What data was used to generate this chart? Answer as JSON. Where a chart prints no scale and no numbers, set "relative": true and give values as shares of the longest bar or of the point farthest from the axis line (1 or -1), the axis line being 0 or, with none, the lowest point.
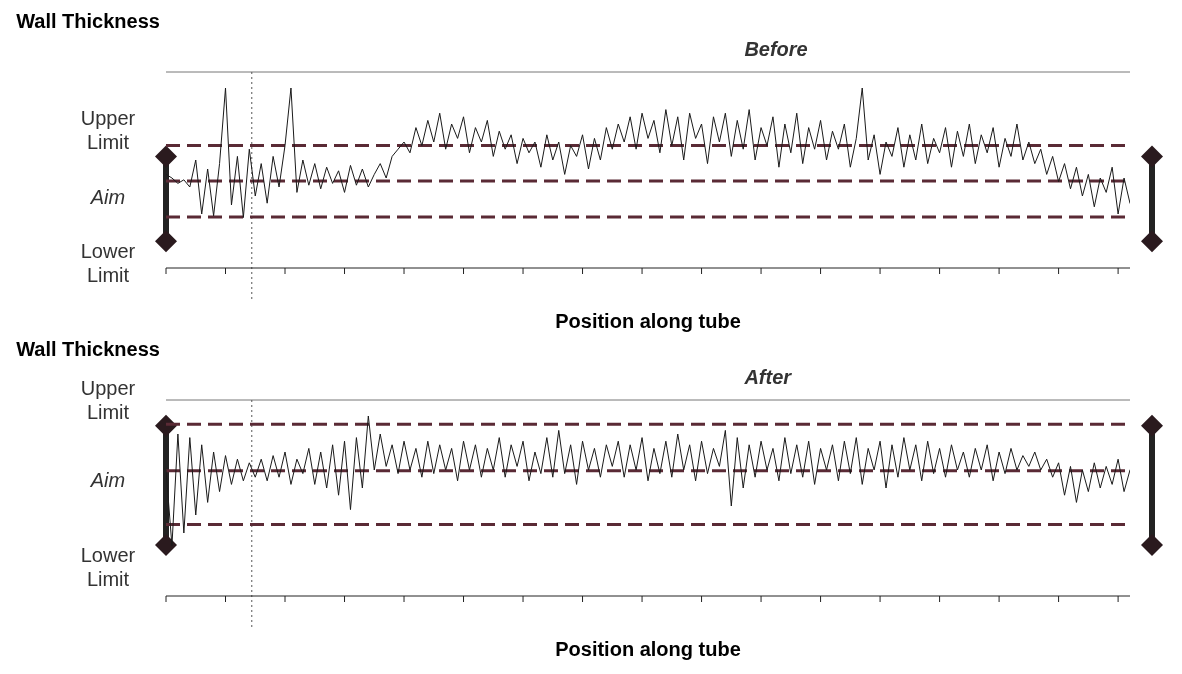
{
  "chart_data": [
    {
      "type": "line",
      "title": "Before",
      "xlabel": "Position along tube",
      "ylabel": "Wall Thickness",
      "relative": true,
      "categories": [
        null,
        null,
        null,
        null,
        null,
        null,
        null,
        null,
        null,
        null,
        null,
        null,
        null,
        null,
        null,
        null,
        null,
        null,
        null,
        null,
        null,
        null,
        null,
        null,
        null,
        null,
        null,
        null,
        null,
        null,
        null,
        null,
        null,
        null,
        null,
        null,
        null,
        null,
        null,
        null,
        null,
        null,
        null,
        null,
        null,
        null,
        null,
        null,
        null,
        null,
        null,
        null,
        null,
        null,
        null,
        null,
        null,
        null,
        null,
        null,
        null,
        null,
        null,
        null,
        null,
        null,
        null,
        null,
        null,
        null,
        null,
        null,
        null,
        null,
        null,
        null,
        null,
        null,
        null,
        null,
        null,
        null,
        null,
        null,
        null,
        null,
        null,
        null,
        null,
        null,
        null,
        null,
        null,
        null,
        null,
        null,
        null,
        null,
        null,
        null,
        null,
        null,
        null,
        null,
        null,
        null,
        null,
        null,
        null,
        null,
        null,
        null,
        null,
        null,
        null,
        null,
        null,
        null,
        null,
        null,
        null,
        null,
        null,
        null,
        null,
        null,
        null,
        null,
        null,
        null,
        null,
        null,
        null,
        null,
        null,
        null,
        null,
        null,
        null,
        null,
        null,
        null,
        null,
        null,
        null,
        null,
        null,
        null,
        null,
        null,
        null,
        null,
        null,
        null,
        null,
        null,
        null,
        null,
        null,
        null,
        null,
        null,
        null
      ],
      "grid": false,
      "legend": false,
      "marker": "none",
      "line_style": "solid",
      "series": [
        {
          "color": "#1a1a1a",
          "values": [
            0.52,
            0.5,
            0.47,
            0.49,
            0.45,
            0.6,
            0.3,
            0.55,
            0.29,
            0.58,
            1.0,
            0.35,
            0.62,
            0.28,
            0.66,
            0.4,
            0.58,
            0.36,
            0.62,
            0.45,
            0.68,
            1.0,
            0.42,
            0.6,
            0.46,
            0.58,
            0.44,
            0.56,
            0.47,
            0.54,
            0.42,
            0.57,
            0.46,
            0.55,
            0.45,
            0.52,
            0.58,
            0.5,
            0.62,
            0.66,
            0.7,
            0.64,
            0.78,
            0.68,
            0.82,
            0.7,
            0.86,
            0.66,
            0.8,
            0.72,
            0.84,
            0.64,
            0.78,
            0.7,
            0.82,
            0.62,
            0.76,
            0.66,
            0.74,
            0.58,
            0.72,
            0.64,
            0.7,
            0.56,
            0.74,
            0.6,
            0.7,
            0.52,
            0.68,
            0.62,
            0.74,
            0.55,
            0.72,
            0.6,
            0.78,
            0.66,
            0.8,
            0.7,
            0.84,
            0.66,
            0.86,
            0.72,
            0.82,
            0.64,
            0.88,
            0.68,
            0.84,
            0.6,
            0.86,
            0.72,
            0.8,
            0.58,
            0.84,
            0.7,
            0.86,
            0.62,
            0.82,
            0.66,
            0.88,
            0.6,
            0.78,
            0.68,
            0.84,
            0.56,
            0.8,
            0.64,
            0.86,
            0.58,
            0.78,
            0.66,
            0.82,
            0.6,
            0.76,
            0.66,
            0.8,
            0.56,
            0.72,
            1.0,
            0.6,
            0.74,
            0.52,
            0.7,
            0.62,
            0.78,
            0.56,
            0.74,
            0.6,
            0.8,
            0.58,
            0.72,
            0.64,
            0.78,
            0.56,
            0.76,
            0.62,
            0.8,
            0.58,
            0.74,
            0.64,
            0.78,
            0.56,
            0.72,
            0.62,
            0.8,
            0.6,
            0.7,
            0.58,
            0.66,
            0.52,
            0.62,
            0.48,
            0.58,
            0.44,
            0.56,
            0.4,
            0.52,
            0.34,
            0.5,
            0.42,
            0.56,
            0.3,
            0.5,
            0.36
          ]
        }
      ],
      "ref_lines": [
        {
          "axis": "y",
          "value": 0.68,
          "label": "Upper Limit",
          "color": "#5a2a35",
          "line_style": "dashed"
        },
        {
          "axis": "y",
          "value": 0.484,
          "label": "Aim",
          "color": "#5a2a35",
          "line_style": "dashed"
        },
        {
          "axis": "y",
          "value": 0.284,
          "label": "Lower Limit",
          "color": "#5a2a35",
          "line_style": "dashed"
        }
      ]
    },
    {
      "type": "line",
      "title": "After",
      "xlabel": "Position along tube",
      "ylabel": "Wall Thickness",
      "relative": true,
      "categories": [
        null,
        null,
        null,
        null,
        null,
        null,
        null,
        null,
        null,
        null,
        null,
        null,
        null,
        null,
        null,
        null,
        null,
        null,
        null,
        null,
        null,
        null,
        null,
        null,
        null,
        null,
        null,
        null,
        null,
        null,
        null,
        null,
        null,
        null,
        null,
        null,
        null,
        null,
        null,
        null,
        null,
        null,
        null,
        null,
        null,
        null,
        null,
        null,
        null,
        null,
        null,
        null,
        null,
        null,
        null,
        null,
        null,
        null,
        null,
        null,
        null,
        null,
        null,
        null,
        null,
        null,
        null,
        null,
        null,
        null,
        null,
        null,
        null,
        null,
        null,
        null,
        null,
        null,
        null,
        null,
        null,
        null,
        null,
        null,
        null,
        null,
        null,
        null,
        null,
        null,
        null,
        null,
        null,
        null,
        null,
        null,
        null,
        null,
        null,
        null,
        null,
        null,
        null,
        null,
        null,
        null,
        null,
        null,
        null,
        null,
        null,
        null,
        null,
        null,
        null,
        null,
        null,
        null,
        null,
        null,
        null,
        null,
        null,
        null,
        null,
        null,
        null,
        null,
        null,
        null,
        null,
        null,
        null,
        null,
        null,
        null,
        null,
        null,
        null,
        null,
        null,
        null,
        null,
        null,
        null,
        null,
        null,
        null,
        null,
        null,
        null,
        null,
        null,
        null,
        null,
        null,
        null,
        null,
        null,
        null,
        null,
        null,
        null
      ],
      "grid": false,
      "legend": false,
      "marker": "none",
      "line_style": "solid",
      "series": [
        {
          "color": "#1a1a1a",
          "values": [
            0.7,
            0.28,
            0.9,
            0.35,
            0.88,
            0.45,
            0.84,
            0.52,
            0.8,
            0.58,
            0.78,
            0.62,
            0.76,
            0.64,
            0.74,
            0.66,
            0.76,
            0.64,
            0.78,
            0.66,
            0.8,
            0.62,
            0.76,
            0.68,
            0.82,
            0.62,
            0.8,
            0.6,
            0.84,
            0.56,
            0.86,
            0.48,
            0.88,
            0.6,
            1.0,
            0.7,
            0.9,
            0.72,
            0.84,
            0.68,
            0.86,
            0.7,
            0.82,
            0.66,
            0.86,
            0.68,
            0.84,
            0.7,
            0.82,
            0.64,
            0.86,
            0.7,
            0.84,
            0.66,
            0.82,
            0.7,
            0.88,
            0.66,
            0.84,
            0.72,
            0.86,
            0.64,
            0.8,
            0.68,
            0.88,
            0.66,
            0.92,
            0.68,
            0.84,
            0.62,
            0.86,
            0.7,
            0.82,
            0.66,
            0.84,
            0.72,
            0.86,
            0.66,
            0.84,
            0.7,
            0.88,
            0.64,
            0.82,
            0.68,
            0.86,
            0.66,
            0.9,
            0.7,
            0.84,
            0.64,
            0.86,
            0.68,
            0.82,
            0.72,
            0.92,
            0.5,
            0.88,
            0.6,
            0.84,
            0.66,
            0.86,
            0.7,
            0.82,
            0.64,
            0.88,
            0.68,
            0.84,
            0.66,
            0.86,
            0.62,
            0.82,
            0.7,
            0.84,
            0.64,
            0.86,
            0.68,
            0.88,
            0.62,
            0.82,
            0.7,
            0.86,
            0.6,
            0.84,
            0.66,
            0.88,
            0.7,
            0.84,
            0.64,
            0.86,
            0.68,
            0.82,
            0.66,
            0.84,
            0.7,
            0.8,
            0.66,
            0.82,
            0.7,
            0.84,
            0.64,
            0.8,
            0.68,
            0.82,
            0.7,
            0.78,
            0.72,
            0.8,
            0.7,
            0.76,
            0.66,
            0.74,
            0.56,
            0.72,
            0.52,
            0.7,
            0.58,
            0.74,
            0.6,
            0.72,
            0.62,
            0.76,
            0.58,
            0.7
          ]
        }
      ],
      "ref_lines": [
        {
          "axis": "y",
          "value": 0.954,
          "label": "Upper Limit",
          "color": "#5a2a35",
          "line_style": "dashed"
        },
        {
          "axis": "y",
          "value": 0.696,
          "label": "Aim",
          "color": "#5a2a35",
          "line_style": "dashed"
        },
        {
          "axis": "y",
          "value": 0.397,
          "label": "Lower Limit",
          "color": "#5a2a35",
          "line_style": "dashed"
        }
      ]
    }
  ]
}
